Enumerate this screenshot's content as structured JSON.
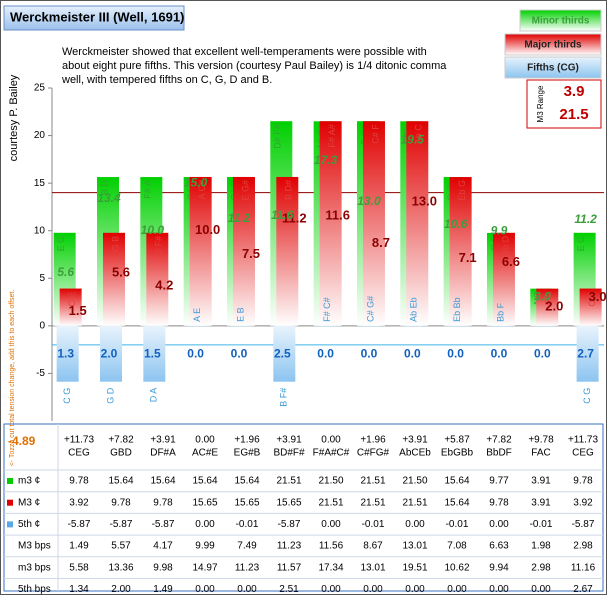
{
  "chart_data": {
    "type": "bar",
    "title": "Werckmeister III (Well, 1691)",
    "description": [
      "Werckmeister showed that excellent well-temperaments were possible with",
      "about eight pure fifths. This version (courtesy Paul Bailey) is 1/4 ditonic comma",
      "well, with tempered fifths on C, G, D and B."
    ],
    "y_label": "courtesy P. Bailey",
    "side_note": "<- Tozzo cut total tension change, add this to each offset.",
    "side_value": "-4.89",
    "range_box": {
      "label": "M3 Range",
      "low": "3.9",
      "high": "21.5"
    },
    "categories": [
      "CEG",
      "GBD",
      "DF#A",
      "AC#E",
      "EG#B",
      "BD#F#",
      "F#A#C#",
      "C#FG#",
      "AbCEb",
      "EbGBb",
      "BbDF",
      "FAC",
      "CEG"
    ],
    "offsets": [
      "+11.73",
      "+7.82",
      "+3.91",
      "0.00",
      "+1.96",
      "+3.91",
      "0.00",
      "+1.96",
      "+3.91",
      "+5.87",
      "+7.82",
      "+9.78",
      "+11.73"
    ],
    "ylim": [
      -10,
      25
    ],
    "yticks": [
      -5,
      0,
      5,
      10,
      15,
      20,
      25
    ],
    "hlines": [
      {
        "value": 14,
        "color": "#8b0000"
      },
      {
        "value": -2,
        "color": "#3cb4e6"
      }
    ],
    "series": [
      {
        "name": "Minor thirds",
        "row_label": "m3 ¢",
        "color": "#00cc00",
        "values": [
          9.78,
          15.64,
          15.64,
          15.64,
          15.64,
          21.51,
          21.5,
          21.51,
          21.5,
          15.64,
          9.77,
          3.91,
          9.78
        ],
        "value_labels": [
          "9.78",
          "15.64",
          "15.64",
          "15.64",
          "15.64",
          "21.51",
          "21.50",
          "21.51",
          "21.50",
          "15.64",
          "9.77",
          "3.91",
          "9.78"
        ],
        "notes": [
          "E G",
          "B D",
          "F# A",
          "C# E",
          "G# B",
          "D# F#",
          "A# C#",
          "E G#",
          "C Eb",
          "G Bb",
          "D F",
          "A C",
          "E G"
        ]
      },
      {
        "name": "Major thirds",
        "row_label": "M3 ¢",
        "color": "#e00000",
        "values": [
          3.92,
          9.78,
          9.78,
          15.65,
          15.65,
          15.65,
          21.51,
          21.51,
          21.51,
          15.64,
          9.78,
          3.91,
          3.92
        ],
        "value_labels": [
          "3.92",
          "9.78",
          "9.78",
          "15.65",
          "15.65",
          "15.65",
          "21.51",
          "21.51",
          "21.51",
          "15.64",
          "9.78",
          "3.91",
          "3.92"
        ],
        "notes": [
          "C E",
          "G B",
          "D F#",
          "A C#",
          "E G#",
          "B D#",
          "F# A#",
          "C# F",
          "Ab C",
          "Eb G",
          "Bb D",
          "F A",
          "C E"
        ]
      },
      {
        "name": "Fifths (CG)",
        "row_label": "5th ¢",
        "color": "#5aa8e8",
        "values": [
          -5.87,
          -5.87,
          -5.87,
          0.0,
          -0.01,
          -5.87,
          0.0,
          -0.01,
          0.0,
          -0.01,
          0.0,
          -0.01,
          -5.87
        ],
        "value_labels": [
          "-5.87",
          "-5.87",
          "-5.87",
          "0.00",
          "-0.01",
          "-5.87",
          "0.00",
          "-0.01",
          "0.00",
          "-0.01",
          "0.00",
          "-0.01",
          "-5.87"
        ],
        "notes": [
          "C G",
          "G D",
          "D A",
          "A E",
          "E B",
          "B F#",
          "F# C#",
          "C# G#",
          "Ab Eb",
          "Eb Bb",
          "Bb F",
          null,
          "C G"
        ]
      }
    ],
    "bps": [
      {
        "row_label": "M3 bps",
        "color": "#8b0000",
        "values": [
          1.49,
          5.57,
          4.17,
          9.99,
          7.49,
          11.23,
          11.56,
          8.67,
          13.01,
          7.08,
          6.63,
          1.98,
          2.98
        ],
        "value_labels": [
          "1.49",
          "5.57",
          "4.17",
          "9.99",
          "7.49",
          "11.23",
          "11.56",
          "8.67",
          "13.01",
          "7.08",
          "6.63",
          "1.98",
          "2.98"
        ],
        "chart_labels": [
          "1.5",
          "5.6",
          "4.2",
          "10.0",
          "7.5",
          "11.2",
          "11.6",
          "8.7",
          "13.0",
          "7.1",
          "6.6",
          "2.0",
          "3.0"
        ]
      },
      {
        "row_label": "m3 bps",
        "color": "#3aa03a",
        "values": [
          5.58,
          13.36,
          9.98,
          14.97,
          11.23,
          11.57,
          17.34,
          13.01,
          19.51,
          10.62,
          9.94,
          2.98,
          11.16
        ],
        "value_labels": [
          "5.58",
          "13.36",
          "9.98",
          "14.97",
          "11.23",
          "11.57",
          "17.34",
          "13.01",
          "19.51",
          "10.62",
          "9.94",
          "2.98",
          "11.16"
        ],
        "chart_labels": [
          "5.6",
          "13.4",
          "10.0",
          "15.0",
          "11.2",
          "11.6",
          "17.3",
          "13.0",
          "19.5",
          "10.6",
          "9.9",
          "3.0",
          "11.2"
        ]
      },
      {
        "row_label": "5th bps",
        "color": "#1060c0",
        "values": [
          1.34,
          2.0,
          1.49,
          0.0,
          0.0,
          2.51,
          0.0,
          0.0,
          0.0,
          0.0,
          0.0,
          0.0,
          2.67
        ],
        "value_labels": [
          "1.34",
          "2.00",
          "1.49",
          "0.00",
          "0.00",
          "2.51",
          "0.00",
          "0.00",
          "0.00",
          "0.00",
          "0.00",
          "0.00",
          "2.67"
        ],
        "chart_labels": [
          "1.3",
          "2.0",
          "1.5",
          "0.0",
          "0.0",
          "2.5",
          "0.0",
          "0.0",
          "0.0",
          "0.0",
          "0.0",
          "0.0",
          "2.7"
        ]
      }
    ]
  }
}
